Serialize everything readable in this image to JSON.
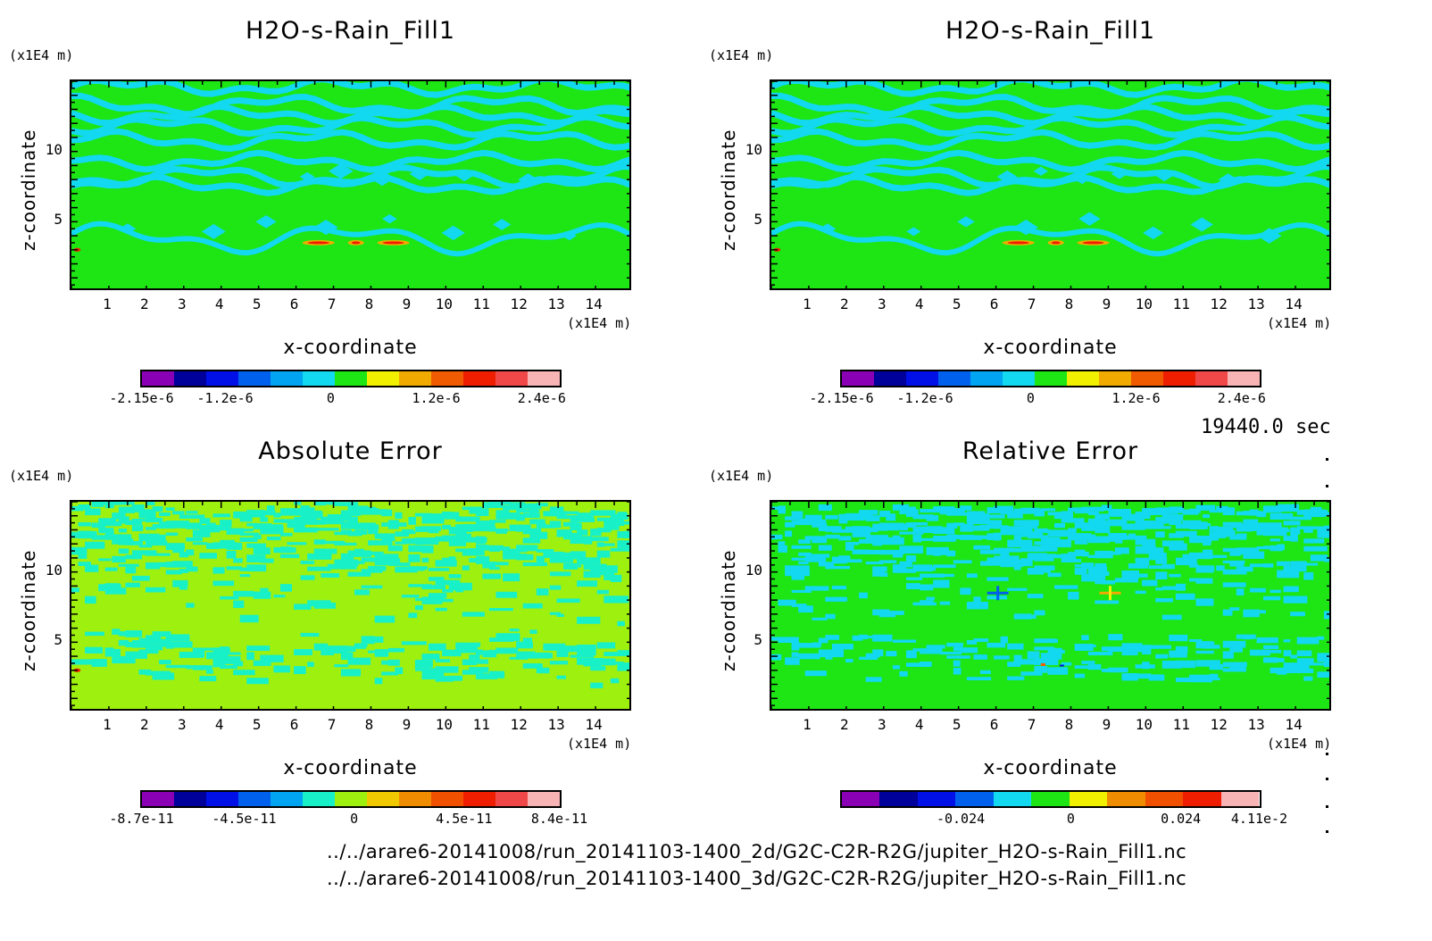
{
  "time_label": "19440.0 sec",
  "file_paths": [
    "../../arare6-20141008/run_20141103-1400_2d/G2C-C2R-R2G/jupiter_H2O-s-Rain_Fill1.nc",
    "../../arare6-20141008/run_20141103-1400_3d/G2C-C2R-R2G/jupiter_H2O-s-Rain_Fill1.nc"
  ],
  "colors": {
    "background_main": "#1de614",
    "background_abs": "#9ef00e",
    "contour_cyan": "#12d8f0",
    "contour_teal": "#18f0c8"
  },
  "chart_data": [
    {
      "type": "heatmap",
      "title": "H2O-s-Rain_Fill1",
      "xlabel": "x-coordinate",
      "ylabel": "z-coordinate",
      "x_unit": "(x1E4 m)",
      "y_unit": "(x1E4 m)",
      "xlim": [
        0,
        15
      ],
      "ylim": [
        0,
        15
      ],
      "xticks": [
        "1",
        "2",
        "3",
        "4",
        "5",
        "6",
        "7",
        "8",
        "9",
        "10",
        "11",
        "12",
        "13",
        "14"
      ],
      "yticks": [
        "5",
        "10"
      ],
      "colorbar": {
        "colors": [
          "#8a00b4",
          "#00009a",
          "#0010e6",
          "#0060ee",
          "#00a4f0",
          "#12d8f0",
          "#1de614",
          "#f0f000",
          "#f0aa00",
          "#f05a00",
          "#f01e00",
          "#f04848",
          "#f8b4b4"
        ],
        "tick_labels": [
          "-2.15e-6",
          "-1.2e-6",
          "0",
          "1.2e-6",
          "2.4e-6"
        ],
        "tick_values": [
          -2.15e-06,
          -1.2e-06,
          0,
          1.2e-06,
          2.4e-06
        ],
        "range": [
          -2.15e-06,
          2.6e-06
        ]
      }
    },
    {
      "type": "heatmap",
      "title": "H2O-s-Rain_Fill1",
      "xlabel": "x-coordinate",
      "ylabel": "z-coordinate",
      "x_unit": "(x1E4 m)",
      "y_unit": "(x1E4 m)",
      "xlim": [
        0,
        15
      ],
      "ylim": [
        0,
        15
      ],
      "xticks": [
        "1",
        "2",
        "3",
        "4",
        "5",
        "6",
        "7",
        "8",
        "9",
        "10",
        "11",
        "12",
        "13",
        "14"
      ],
      "yticks": [
        "5",
        "10"
      ],
      "colorbar": {
        "colors": [
          "#8a00b4",
          "#00009a",
          "#0010e6",
          "#0060ee",
          "#00a4f0",
          "#12d8f0",
          "#1de614",
          "#f0f000",
          "#f0aa00",
          "#f05a00",
          "#f01e00",
          "#f04848",
          "#f8b4b4"
        ],
        "tick_labels": [
          "-2.15e-6",
          "-1.2e-6",
          "0",
          "1.2e-6",
          "2.4e-6"
        ],
        "tick_values": [
          -2.15e-06,
          -1.2e-06,
          0,
          1.2e-06,
          2.4e-06
        ],
        "range": [
          -2.15e-06,
          2.6e-06
        ]
      }
    },
    {
      "type": "heatmap",
      "title": "Absolute Error",
      "xlabel": "x-coordinate",
      "ylabel": "z-coordinate",
      "x_unit": "(x1E4 m)",
      "y_unit": "(x1E4 m)",
      "xlim": [
        0,
        15
      ],
      "ylim": [
        0,
        15
      ],
      "xticks": [
        "1",
        "2",
        "3",
        "4",
        "5",
        "6",
        "7",
        "8",
        "9",
        "10",
        "11",
        "12",
        "13",
        "14"
      ],
      "yticks": [
        "5",
        "10"
      ],
      "colorbar": {
        "colors": [
          "#8a00b4",
          "#00009a",
          "#0010e6",
          "#0060ee",
          "#00a4f0",
          "#18f0c8",
          "#9ef00e",
          "#f0c800",
          "#f08c00",
          "#f05000",
          "#f01e00",
          "#f04848",
          "#f8b4b4"
        ],
        "tick_labels": [
          "-8.7e-11",
          "-4.5e-11",
          "0",
          "4.5e-11",
          "8.4e-11"
        ],
        "tick_values": [
          -8.7e-11,
          -4.5e-11,
          0,
          4.5e-11,
          8.4e-11
        ],
        "range": [
          -8.7e-11,
          8.4e-11
        ]
      }
    },
    {
      "type": "heatmap",
      "title": "Relative Error",
      "xlabel": "x-coordinate",
      "ylabel": "z-coordinate",
      "x_unit": "(x1E4 m)",
      "y_unit": "(x1E4 m)",
      "xlim": [
        0,
        15
      ],
      "ylim": [
        0,
        15
      ],
      "xticks": [
        "1",
        "2",
        "3",
        "4",
        "5",
        "6",
        "7",
        "8",
        "9",
        "10",
        "11",
        "12",
        "13",
        "14"
      ],
      "yticks": [
        "5",
        "10"
      ],
      "colorbar": {
        "colors": [
          "#8a00b4",
          "#00009a",
          "#0010e6",
          "#0060ee",
          "#12d8f0",
          "#1de614",
          "#f0f000",
          "#f08c00",
          "#f05000",
          "#f01e00",
          "#f8b4b4"
        ],
        "tick_labels": [
          "-0.024",
          "0",
          "0.024",
          "4.11e-2"
        ],
        "tick_values": [
          -0.024,
          0,
          0.024,
          0.0411
        ],
        "range": [
          -0.05,
          0.0411
        ]
      }
    }
  ]
}
